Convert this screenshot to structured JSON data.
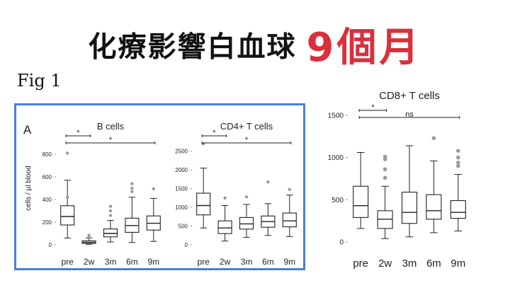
{
  "headline": {
    "black": "化療影響白血球",
    "red": "9個月"
  },
  "figure_label": "Fig 1",
  "panel_letter": "A",
  "ylabel": "cells / µl blood",
  "chart_data": [
    {
      "type": "box",
      "title": "B cells",
      "categories": [
        "pre",
        "2w",
        "3m",
        "6m",
        "9m"
      ],
      "ylim": [
        0,
        900
      ],
      "yticks": [
        0,
        200,
        400,
        600,
        800
      ],
      "boxes": [
        {
          "category": "pre",
          "min": 60,
          "q1": 175,
          "median": 250,
          "q3": 345,
          "max": 570,
          "outliers": [
            420,
            810
          ]
        },
        {
          "category": "2w",
          "min": 5,
          "q1": 12,
          "median": 22,
          "q3": 35,
          "max": 60,
          "outliers": [
            70,
            85
          ]
        },
        {
          "category": "3m",
          "min": 25,
          "q1": 70,
          "median": 100,
          "q3": 140,
          "max": 215,
          "outliers": [
            260,
            300,
            340
          ]
        },
        {
          "category": "6m",
          "min": 20,
          "q1": 110,
          "median": 170,
          "q3": 235,
          "max": 420,
          "outliers": [
            470,
            500,
            540
          ]
        },
        {
          "category": "9m",
          "min": 30,
          "q1": 130,
          "median": 190,
          "q3": 255,
          "max": 410,
          "outliers": [
            495
          ]
        }
      ],
      "comparisons": [
        {
          "from": "pre",
          "to": "2w",
          "label": "*"
        },
        {
          "from": "pre",
          "to": "9m",
          "label": "*"
        }
      ]
    },
    {
      "type": "box",
      "title": "CD4+ T cells",
      "categories": [
        "pre",
        "2w",
        "3m",
        "6m",
        "9m"
      ],
      "ylim": [
        0,
        2800
      ],
      "yticks": [
        0,
        500,
        1000,
        1500,
        2000,
        2500
      ],
      "boxes": [
        {
          "category": "pre",
          "min": 450,
          "q1": 800,
          "median": 1050,
          "q3": 1380,
          "max": 2050,
          "outliers": [
            2700
          ]
        },
        {
          "category": "2w",
          "min": 100,
          "q1": 300,
          "median": 450,
          "q3": 640,
          "max": 1050,
          "outliers": [
            1250
          ]
        },
        {
          "category": "3m",
          "min": 200,
          "q1": 420,
          "median": 560,
          "q3": 730,
          "max": 1080,
          "outliers": [
            1280
          ]
        },
        {
          "category": "6m",
          "min": 250,
          "q1": 470,
          "median": 620,
          "q3": 770,
          "max": 1100,
          "outliers": [
            1680
          ]
        },
        {
          "category": "9m",
          "min": 220,
          "q1": 480,
          "median": 640,
          "q3": 850,
          "max": 1330,
          "outliers": [
            1480
          ]
        }
      ],
      "comparisons": [
        {
          "from": "pre",
          "to": "2w",
          "label": "*"
        },
        {
          "from": "pre",
          "to": "9m",
          "label": "*"
        }
      ]
    },
    {
      "type": "box",
      "title": "CD8+ T cells",
      "categories": [
        "pre",
        "2w",
        "3m",
        "6m",
        "9m"
      ],
      "ylim": [
        0,
        1500
      ],
      "yticks": [
        0,
        500,
        1000,
        1500
      ],
      "boxes": [
        {
          "category": "pre",
          "min": 160,
          "q1": 290,
          "median": 430,
          "q3": 660,
          "max": 1060,
          "outliers": []
        },
        {
          "category": "2w",
          "min": 40,
          "q1": 160,
          "median": 270,
          "q3": 370,
          "max": 660,
          "outliers": [
            760,
            860,
            980,
            1010
          ]
        },
        {
          "category": "3m",
          "min": 60,
          "q1": 220,
          "median": 350,
          "q3": 590,
          "max": 1140,
          "outliers": []
        },
        {
          "category": "6m",
          "min": 110,
          "q1": 270,
          "median": 370,
          "q3": 560,
          "max": 960,
          "outliers": [
            1230
          ]
        },
        {
          "category": "9m",
          "min": 130,
          "q1": 280,
          "median": 350,
          "q3": 490,
          "max": 800,
          "outliers": [
            900,
            940,
            1000,
            1080
          ]
        }
      ],
      "comparisons": [
        {
          "from": "pre",
          "to": "2w",
          "label": "*"
        },
        {
          "from": "pre",
          "to": "9m",
          "label": "ns"
        }
      ]
    }
  ]
}
